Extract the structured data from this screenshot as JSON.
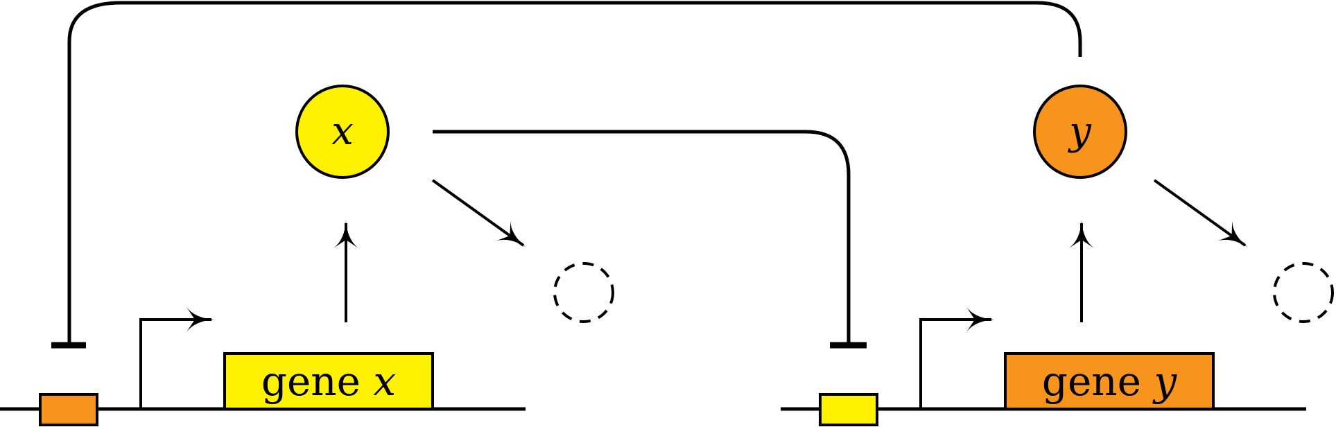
{
  "colors": {
    "yellow": "#fff200",
    "orange": "#f7941d",
    "stroke": "#000000",
    "background": "#ffffff"
  },
  "genes": {
    "x": {
      "word": "gene",
      "var": "x"
    },
    "y": {
      "word": "gene",
      "var": "y"
    }
  },
  "nodes": {
    "x": {
      "label": "x"
    },
    "y": {
      "label": "y"
    }
  }
}
